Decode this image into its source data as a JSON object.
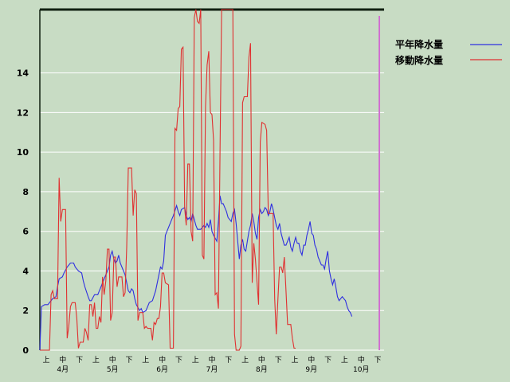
{
  "chart_data": {
    "type": "line",
    "title": "",
    "xlabel": "",
    "ylabel": "",
    "ylim": [
      0,
      17.2
    ],
    "yticks": [
      0,
      2,
      4,
      6,
      8,
      10,
      12,
      14
    ],
    "x_period_labels": [
      "上",
      "中",
      "下",
      "上",
      "中",
      "下",
      "上",
      "中",
      "下",
      "上",
      "中",
      "下",
      "上",
      "中",
      "下",
      "上",
      "中",
      "下",
      "上",
      "中",
      "下"
    ],
    "x_month_labels": [
      "4月",
      "5月",
      "6月",
      "7月",
      "8月",
      "9月",
      "10月"
    ],
    "grid": true,
    "legend": "top-right",
    "colors": {
      "background": "#c8dcc4",
      "normal": "#2f2fe0",
      "moving": "#e03030",
      "marker": "#d070d0",
      "grid": "#ffffff"
    },
    "x_day_range": [
      0,
      214
    ],
    "series": [
      {
        "name": "平年降水量",
        "color": "#2f2fe0",
        "points": [
          [
            0,
            0
          ],
          [
            1,
            2.2
          ],
          [
            3,
            2.3
          ],
          [
            5,
            2.3
          ],
          [
            8,
            2.6
          ],
          [
            10,
            2.7
          ],
          [
            11,
            3.2
          ],
          [
            12,
            3.6
          ],
          [
            14,
            3.7
          ],
          [
            15,
            3.9
          ],
          [
            17,
            4.2
          ],
          [
            19,
            4.4
          ],
          [
            21,
            4.4
          ],
          [
            22,
            4.2
          ],
          [
            24,
            4.0
          ],
          [
            26,
            3.9
          ],
          [
            27,
            3.5
          ],
          [
            28,
            3.2
          ],
          [
            30,
            2.7
          ],
          [
            31,
            2.5
          ],
          [
            32,
            2.5
          ],
          [
            34,
            2.8
          ],
          [
            36,
            2.8
          ],
          [
            37,
            3.0
          ],
          [
            38,
            3.2
          ],
          [
            40,
            3.6
          ],
          [
            42,
            4.0
          ],
          [
            43,
            4.2
          ],
          [
            44,
            4.8
          ],
          [
            45,
            5.0
          ],
          [
            46,
            4.6
          ],
          [
            47,
            4.4
          ],
          [
            48,
            4.5
          ],
          [
            49,
            4.8
          ],
          [
            50,
            4.4
          ],
          [
            52,
            4.0
          ],
          [
            53,
            3.8
          ],
          [
            54,
            3.4
          ],
          [
            55,
            3.0
          ],
          [
            56,
            2.9
          ],
          [
            57,
            3.1
          ],
          [
            58,
            3.0
          ],
          [
            59,
            2.6
          ],
          [
            60,
            2.3
          ],
          [
            62,
            2.0
          ],
          [
            63,
            2.1
          ],
          [
            64,
            1.9
          ],
          [
            66,
            2.0
          ],
          [
            68,
            2.4
          ],
          [
            70,
            2.5
          ],
          [
            72,
            3.0
          ],
          [
            74,
            3.8
          ],
          [
            75,
            4.2
          ],
          [
            76,
            4.1
          ],
          [
            77,
            4.5
          ],
          [
            78,
            5.8
          ],
          [
            80,
            6.2
          ],
          [
            82,
            6.6
          ],
          [
            83,
            6.8
          ],
          [
            85,
            7.3
          ],
          [
            86,
            7.0
          ],
          [
            87,
            6.8
          ],
          [
            88,
            7.1
          ],
          [
            90,
            7.2
          ],
          [
            91,
            6.8
          ],
          [
            92,
            6.6
          ],
          [
            93,
            6.7
          ],
          [
            94,
            6.5
          ],
          [
            95,
            6.9
          ],
          [
            96,
            6.6
          ],
          [
            97,
            6.3
          ],
          [
            98,
            6.1
          ],
          [
            100,
            6.1
          ],
          [
            102,
            6.3
          ],
          [
            103,
            6.2
          ],
          [
            104,
            6.4
          ],
          [
            105,
            6.2
          ],
          [
            106,
            6.6
          ],
          [
            107,
            6.0
          ],
          [
            108,
            5.8
          ],
          [
            110,
            5.5
          ],
          [
            111,
            6.5
          ],
          [
            112,
            7.8
          ],
          [
            113,
            7.4
          ],
          [
            114,
            7.4
          ],
          [
            115,
            7.2
          ],
          [
            116,
            7.0
          ],
          [
            117,
            6.7
          ],
          [
            118,
            6.6
          ],
          [
            119,
            6.5
          ],
          [
            120,
            6.9
          ],
          [
            121,
            7.1
          ],
          [
            122,
            6.4
          ],
          [
            123,
            5.5
          ],
          [
            124,
            4.6
          ],
          [
            125,
            5.3
          ],
          [
            126,
            5.6
          ],
          [
            127,
            5.1
          ],
          [
            128,
            5.0
          ],
          [
            129,
            5.5
          ],
          [
            130,
            6.0
          ],
          [
            131,
            6.3
          ],
          [
            132,
            6.9
          ],
          [
            133,
            6.5
          ],
          [
            134,
            5.9
          ],
          [
            135,
            5.6
          ],
          [
            136,
            6.7
          ],
          [
            137,
            7.1
          ],
          [
            138,
            6.9
          ],
          [
            139,
            7.0
          ],
          [
            140,
            7.2
          ],
          [
            141,
            7.1
          ],
          [
            142,
            6.8
          ],
          [
            143,
            7.0
          ],
          [
            144,
            7.4
          ],
          [
            145,
            7.1
          ],
          [
            146,
            6.7
          ],
          [
            147,
            6.3
          ],
          [
            148,
            6.1
          ],
          [
            149,
            6.4
          ],
          [
            150,
            5.9
          ],
          [
            151,
            5.6
          ],
          [
            152,
            5.3
          ],
          [
            153,
            5.3
          ],
          [
            154,
            5.5
          ],
          [
            155,
            5.7
          ],
          [
            156,
            5.2
          ],
          [
            157,
            5.0
          ],
          [
            158,
            5.4
          ],
          [
            159,
            5.7
          ],
          [
            160,
            5.4
          ],
          [
            161,
            5.4
          ],
          [
            162,
            5.0
          ],
          [
            163,
            4.8
          ],
          [
            164,
            5.3
          ],
          [
            165,
            5.3
          ],
          [
            166,
            5.8
          ],
          [
            167,
            6.1
          ],
          [
            168,
            6.5
          ],
          [
            169,
            5.9
          ],
          [
            170,
            5.8
          ],
          [
            171,
            5.3
          ],
          [
            172,
            5.1
          ],
          [
            173,
            4.7
          ],
          [
            174,
            4.5
          ],
          [
            175,
            4.3
          ],
          [
            176,
            4.3
          ],
          [
            177,
            4.1
          ],
          [
            178,
            4.6
          ],
          [
            179,
            5.0
          ],
          [
            180,
            4.0
          ],
          [
            181,
            3.6
          ],
          [
            182,
            3.3
          ],
          [
            183,
            3.6
          ],
          [
            184,
            3.2
          ],
          [
            185,
            2.7
          ],
          [
            186,
            2.5
          ],
          [
            187,
            2.6
          ],
          [
            188,
            2.7
          ],
          [
            189,
            2.6
          ],
          [
            190,
            2.5
          ],
          [
            191,
            2.2
          ],
          [
            192,
            2.0
          ],
          [
            193,
            1.9
          ],
          [
            194,
            1.7
          ]
        ]
      },
      {
        "name": "移動降水量",
        "color": "#e03030",
        "points": [
          [
            0,
            0
          ],
          [
            6,
            0
          ],
          [
            7,
            2.8
          ],
          [
            8,
            3.0
          ],
          [
            9,
            2.6
          ],
          [
            11,
            2.6
          ],
          [
            12,
            8.7
          ],
          [
            13,
            6.5
          ],
          [
            14,
            7.1
          ],
          [
            16,
            7.1
          ],
          [
            17,
            0.6
          ],
          [
            18,
            1.2
          ],
          [
            19,
            2.2
          ],
          [
            20,
            2.4
          ],
          [
            22,
            2.4
          ],
          [
            23,
            1.6
          ],
          [
            24,
            0.1
          ],
          [
            25,
            0.4
          ],
          [
            27,
            0.4
          ],
          [
            28,
            1.1
          ],
          [
            29,
            0.9
          ],
          [
            30,
            0.5
          ],
          [
            31,
            2.3
          ],
          [
            32,
            2.3
          ],
          [
            33,
            1.7
          ],
          [
            34,
            2.4
          ],
          [
            35,
            1.1
          ],
          [
            36,
            1.1
          ],
          [
            37,
            1.7
          ],
          [
            38,
            1.4
          ],
          [
            39,
            3.7
          ],
          [
            40,
            2.8
          ],
          [
            41,
            3.5
          ],
          [
            42,
            5.1
          ],
          [
            43,
            5.1
          ],
          [
            44,
            1.5
          ],
          [
            45,
            1.9
          ],
          [
            46,
            4.7
          ],
          [
            47,
            4.7
          ],
          [
            48,
            3.2
          ],
          [
            49,
            3.7
          ],
          [
            51,
            3.7
          ],
          [
            52,
            2.7
          ],
          [
            53,
            2.9
          ],
          [
            54,
            5.2
          ],
          [
            55,
            9.2
          ],
          [
            57,
            9.2
          ],
          [
            58,
            6.8
          ],
          [
            59,
            8.1
          ],
          [
            60,
            7.9
          ],
          [
            61,
            1.5
          ],
          [
            62,
            1.9
          ],
          [
            64,
            1.9
          ],
          [
            65,
            1.1
          ],
          [
            66,
            1.2
          ],
          [
            67,
            1.1
          ],
          [
            69,
            1.1
          ],
          [
            70,
            0.5
          ],
          [
            71,
            1.4
          ],
          [
            72,
            1.3
          ],
          [
            73,
            1.6
          ],
          [
            74,
            1.6
          ],
          [
            75,
            2.2
          ],
          [
            76,
            3.9
          ],
          [
            77,
            3.9
          ],
          [
            78,
            3.4
          ],
          [
            80,
            3.3
          ],
          [
            81,
            0.1
          ],
          [
            83,
            0.1
          ],
          [
            84,
            11.2
          ],
          [
            85,
            11.1
          ],
          [
            86,
            12.2
          ],
          [
            87,
            12.3
          ],
          [
            88,
            15.2
          ],
          [
            89,
            15.3
          ],
          [
            90,
            7.2
          ],
          [
            91,
            6.3
          ],
          [
            92,
            9.4
          ],
          [
            93,
            9.4
          ],
          [
            94,
            6.0
          ],
          [
            95,
            5.5
          ],
          [
            96,
            16.8
          ],
          [
            97,
            17.2
          ],
          [
            98,
            16.6
          ],
          [
            99,
            16.5
          ],
          [
            100,
            17.2
          ],
          [
            101,
            4.8
          ],
          [
            102,
            4.6
          ],
          [
            103,
            12.3
          ],
          [
            104,
            14.4
          ],
          [
            105,
            15.1
          ],
          [
            106,
            12.0
          ],
          [
            107,
            11.9
          ],
          [
            108,
            10.6
          ],
          [
            109,
            2.8
          ],
          [
            110,
            2.9
          ],
          [
            111,
            2.1
          ],
          [
            112,
            10.0
          ],
          [
            113,
            17.2
          ],
          [
            114,
            17.2
          ],
          [
            115,
            17.2
          ],
          [
            116,
            17.2
          ],
          [
            117,
            17.2
          ],
          [
            118,
            17.2
          ],
          [
            119,
            17.2
          ],
          [
            120,
            17.2
          ],
          [
            121,
            0.8
          ],
          [
            122,
            0.0
          ],
          [
            124,
            0.0
          ],
          [
            125,
            0.2
          ],
          [
            126,
            12.5
          ],
          [
            127,
            12.8
          ],
          [
            129,
            12.8
          ],
          [
            130,
            14.8
          ],
          [
            131,
            15.5
          ],
          [
            132,
            3.4
          ],
          [
            133,
            5.4
          ],
          [
            134,
            4.6
          ],
          [
            136,
            2.3
          ],
          [
            137,
            10.5
          ],
          [
            138,
            11.5
          ],
          [
            140,
            11.4
          ],
          [
            141,
            11.1
          ],
          [
            142,
            6.9
          ],
          [
            143,
            6.9
          ],
          [
            145,
            6.9
          ],
          [
            146,
            2.6
          ],
          [
            147,
            0.8
          ],
          [
            148,
            2.6
          ],
          [
            149,
            4.2
          ],
          [
            150,
            4.2
          ],
          [
            151,
            3.9
          ],
          [
            152,
            4.7
          ],
          [
            153,
            3.0
          ],
          [
            154,
            1.3
          ],
          [
            156,
            1.3
          ],
          [
            157,
            0.6
          ],
          [
            158,
            0.1
          ],
          [
            159,
            0.1
          ]
        ]
      }
    ]
  }
}
